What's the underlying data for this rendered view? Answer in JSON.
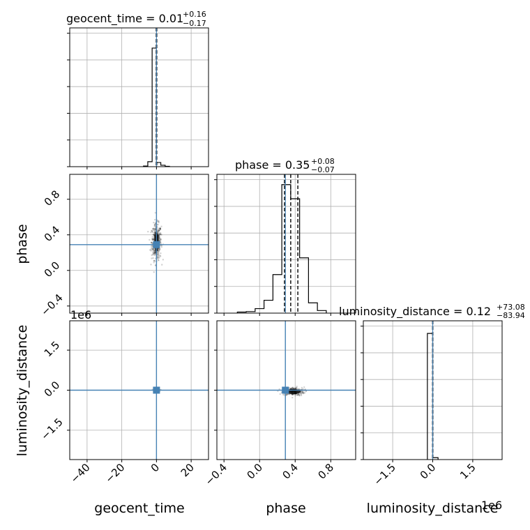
{
  "chart_data": {
    "type": "corner",
    "parameters": [
      "geocent_time",
      "phase",
      "luminosity_distance"
    ],
    "truths": {
      "geocent_time": 0.0,
      "phase": 0.29,
      "luminosity_distance": 0.0
    },
    "marginals": {
      "geocent_time": {
        "title": {
          "name": "geocent_time = 0.01",
          "sup": "+0.16",
          "sub": "−0.17"
        },
        "xlim": [
          -50,
          30
        ],
        "bin_edges": [
          -7.5,
          -5,
          -2.5,
          0,
          2.5,
          5,
          7.5
        ],
        "counts": [
          0.5,
          4.2,
          100,
          3.5,
          1.2,
          0.3
        ],
        "ymax": 117,
        "quantiles": [
          -0.16,
          0.01,
          0.17
        ]
      },
      "phase": {
        "title": {
          "name": "phase = 0.35",
          "sup": "+0.08",
          "sub": "−0.07"
        },
        "xlim": [
          -0.48,
          1.08
        ],
        "bin_edges": [
          -0.25,
          -0.15,
          -0.05,
          0.05,
          0.15,
          0.25,
          0.35,
          0.45,
          0.55,
          0.65,
          0.75
        ],
        "counts": [
          0.8,
          1.2,
          3.5,
          10,
          30,
          100,
          89,
          43,
          8,
          2
        ],
        "ymax": 108,
        "quantiles": [
          0.28,
          0.35,
          0.43
        ]
      },
      "luminosity_distance": {
        "title": {
          "name": "luminosity_distance = 0.12",
          "sup": "+73.08",
          "sub": "−83.94"
        },
        "xlim": [
          -2.6,
          2.6
        ],
        "bin_edges": [
          -0.2,
          0,
          0.2
        ],
        "counts": [
          100,
          1.5
        ],
        "ymax": 110,
        "quantiles": [
          -8e-05,
          1e-07,
          7e-05
        ]
      }
    },
    "ticks": {
      "geocent_time": {
        "values": [
          -40,
          -20,
          0,
          20
        ],
        "labels": [
          "−40",
          "−20",
          "0",
          "20"
        ]
      },
      "phase_x": {
        "values": [
          -0.4,
          0.0,
          0.4,
          0.8
        ],
        "labels": [
          "−0.4",
          "0.0",
          "0.4",
          "0.8"
        ]
      },
      "phase_y": {
        "values": [
          -0.4,
          0.0,
          0.4,
          0.8
        ],
        "labels": [
          "−0.4",
          "0.0",
          "0.4",
          "0.8"
        ]
      },
      "luminosity_distance_x": {
        "values": [
          -1.5,
          0.0,
          1.5
        ],
        "labels": [
          "−1.5",
          "0.0",
          "1.5"
        ]
      },
      "luminosity_distance_y": {
        "values": [
          -1.5,
          0.0,
          1.5
        ],
        "labels": [
          "−1.5",
          "0.0",
          "1.5"
        ]
      }
    },
    "axis_labels": {
      "x": [
        "geocent_time",
        "phase",
        "luminosity_distance"
      ],
      "y": [
        "phase",
        "luminosity_distance"
      ]
    },
    "offset_texts": {
      "y_ld": "1e6",
      "x_ld": "1e6"
    },
    "scatter_2d": {
      "phase_vs_geocent": {
        "center": [
          0.0,
          0.32
        ],
        "spread": [
          1.4,
          0.1
        ],
        "n": 450,
        "xlim": [
          -50,
          30
        ],
        "ylim": [
          -0.48,
          1.08
        ]
      },
      "ld_vs_geocent": {
        "center": [
          0.0,
          0.0
        ],
        "spread": [
          0.8,
          0.02
        ],
        "n": 120,
        "xlim": [
          -50,
          30
        ],
        "ylim": [
          -2.6,
          2.6
        ]
      },
      "ld_vs_phase": {
        "center": [
          0.38,
          -0.05
        ],
        "spread": [
          0.06,
          0.08
        ],
        "n": 250,
        "xlim": [
          -0.48,
          1.08
        ],
        "ylim": [
          -2.6,
          2.6
        ]
      }
    },
    "grid": true,
    "colors": {
      "truth": "#4682b4",
      "hist": "#000000",
      "grid": "#b0b0b0",
      "points": "#000000"
    }
  }
}
